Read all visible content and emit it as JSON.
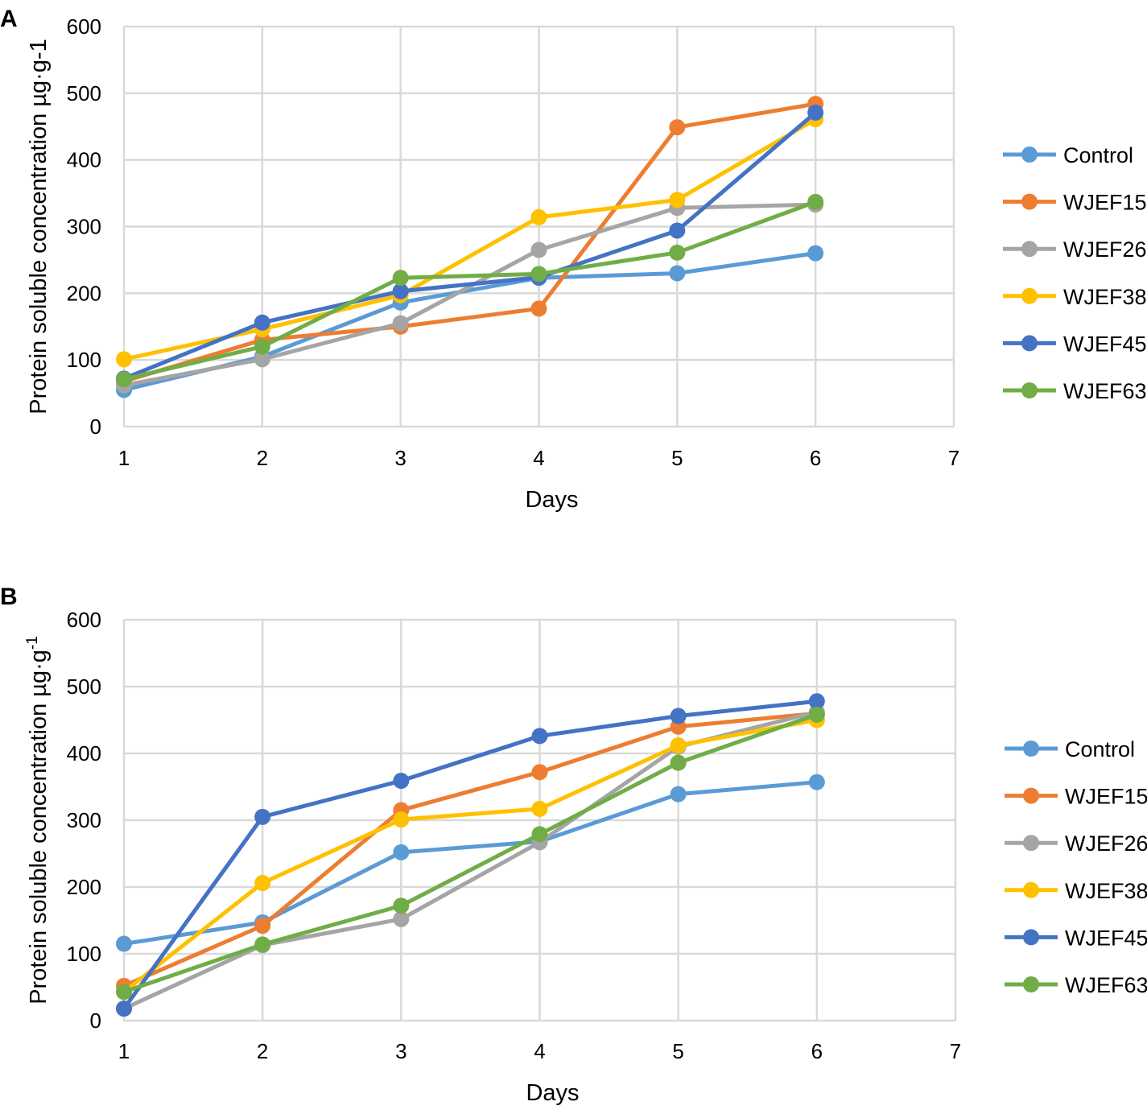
{
  "figure": {
    "series_colors": {
      "Control": "#5b9bd5",
      "WJEF15": "#ed7d31",
      "WJEF26": "#a5a5a5",
      "WJEF38": "#ffc000",
      "WJEF45": "#4472c4",
      "WJEF63": "#70ad47"
    }
  },
  "chart_data": [
    {
      "panel_label": "A",
      "type": "line",
      "title": "",
      "xlabel": "Days",
      "ylabel": "Protein soluble concentration µg·g-1",
      "ylabel_superscript": "",
      "xlim": [
        1,
        7
      ],
      "ylim": [
        0,
        600
      ],
      "x_ticks": [
        1,
        2,
        3,
        4,
        5,
        6,
        7
      ],
      "y_ticks": [
        0,
        100,
        200,
        300,
        400,
        500,
        600
      ],
      "grid": true,
      "legend": "right",
      "x": [
        1,
        2,
        3,
        4,
        5,
        6
      ],
      "series": [
        {
          "name": "Control",
          "values": [
            55,
            105,
            186,
            223,
            230,
            260
          ]
        },
        {
          "name": "WJEF15",
          "values": [
            68,
            130,
            150,
            177,
            449,
            484
          ]
        },
        {
          "name": "WJEF26",
          "values": [
            62,
            101,
            155,
            265,
            328,
            333
          ]
        },
        {
          "name": "WJEF38",
          "values": [
            101,
            146,
            197,
            314,
            340,
            461
          ]
        },
        {
          "name": "WJEF45",
          "values": [
            72,
            156,
            203,
            224,
            294,
            471
          ]
        },
        {
          "name": "WJEF63",
          "values": [
            71,
            120,
            223,
            229,
            261,
            337
          ]
        }
      ]
    },
    {
      "panel_label": "B",
      "type": "line",
      "title": "",
      "xlabel": "Days",
      "ylabel": "Protein soluble concentration µg·g",
      "ylabel_superscript": "-1",
      "xlim": [
        1,
        7
      ],
      "ylim": [
        0,
        600
      ],
      "x_ticks": [
        1,
        2,
        3,
        4,
        5,
        6,
        7
      ],
      "y_ticks": [
        0,
        100,
        200,
        300,
        400,
        500,
        600
      ],
      "grid": true,
      "legend": "right",
      "x": [
        1,
        2,
        3,
        4,
        5,
        6
      ],
      "series": [
        {
          "name": "Control",
          "values": [
            115,
            147,
            252,
            268,
            339,
            357
          ]
        },
        {
          "name": "WJEF15",
          "values": [
            52,
            142,
            315,
            372,
            440,
            460
          ]
        },
        {
          "name": "WJEF26",
          "values": [
            18,
            113,
            152,
            267,
            410,
            462
          ]
        },
        {
          "name": "WJEF38",
          "values": [
            43,
            206,
            301,
            317,
            412,
            450
          ]
        },
        {
          "name": "WJEF45",
          "values": [
            18,
            305,
            359,
            426,
            456,
            478
          ]
        },
        {
          "name": "WJEF63",
          "values": [
            43,
            114,
            172,
            279,
            386,
            458
          ]
        }
      ]
    }
  ]
}
